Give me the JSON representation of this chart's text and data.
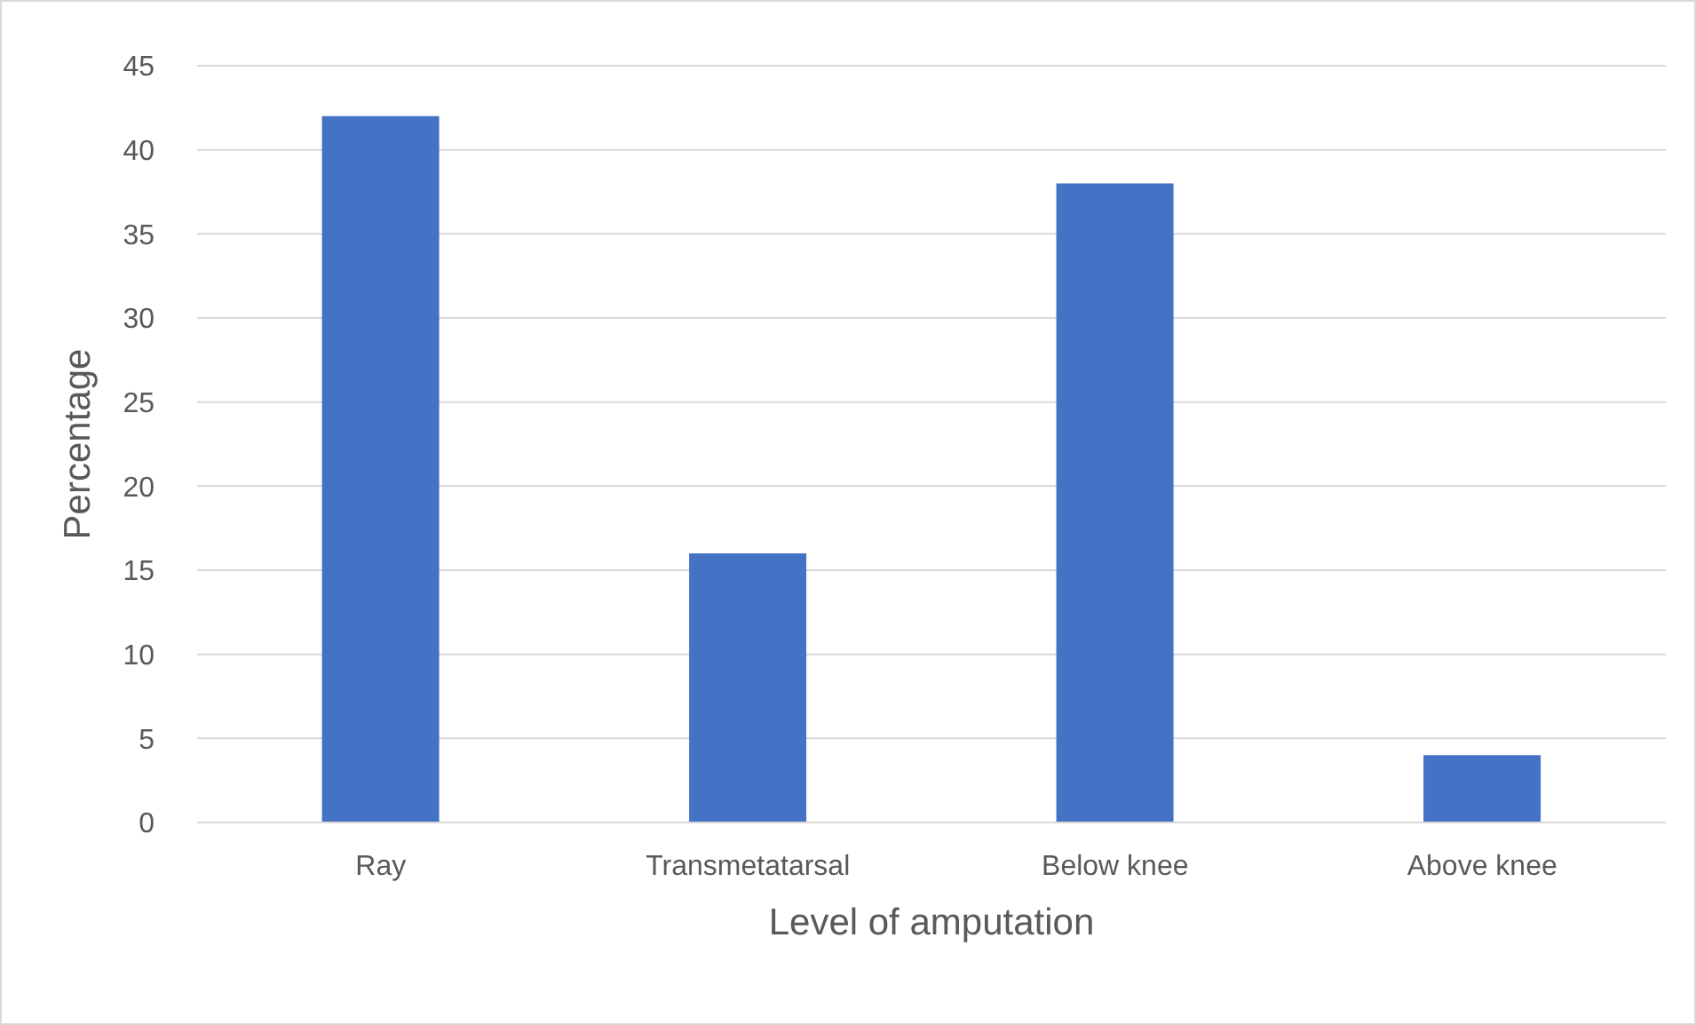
{
  "chart_data": {
    "type": "bar",
    "xlabel": "Level of amputation",
    "ylabel": "Percentage",
    "categories": [
      "Ray",
      "Transmetatarsal",
      "Below knee",
      "Above knee"
    ],
    "values": [
      42,
      16,
      38,
      4
    ],
    "color": "#4472c4",
    "ylim": [
      0,
      45
    ],
    "yticks": [
      0,
      5,
      10,
      15,
      20,
      25,
      30,
      35,
      40,
      45
    ],
    "grid": "y",
    "legend": false
  }
}
